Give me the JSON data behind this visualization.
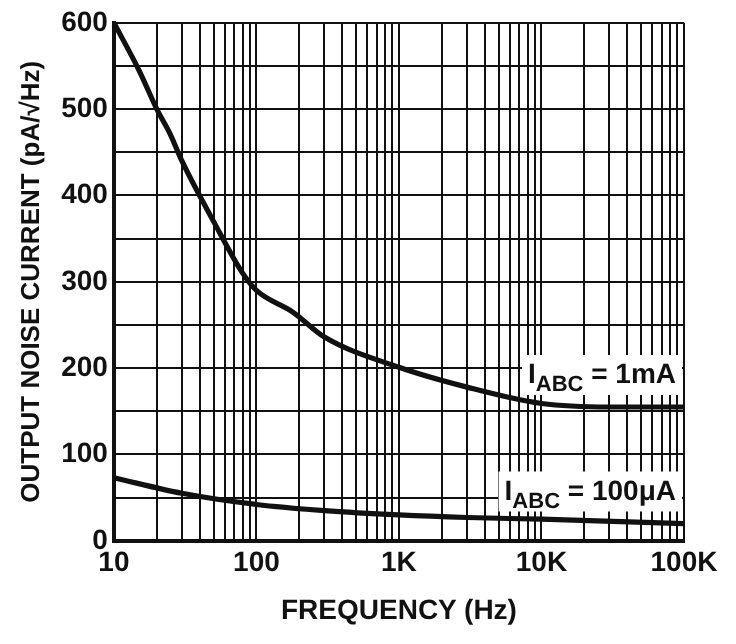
{
  "chart_data": {
    "type": "line",
    "xlabel": "FREQUENCY (Hz)",
    "ylabel": "OUTPUT NOISE CURRENT (pA/√Hz)",
    "log": "x",
    "xlim": [
      10,
      100000
    ],
    "ylim": [
      0,
      600
    ],
    "xticks": [
      10,
      {
        "value": 20,
        "label": null
      },
      {
        "value": 30,
        "label": null
      },
      {
        "value": 40,
        "label": null
      },
      {
        "value": 50,
        "label": null
      },
      {
        "value": 60,
        "label": null
      },
      {
        "value": 70,
        "label": null
      },
      {
        "value": 80,
        "label": null
      },
      {
        "value": 90,
        "label": null
      },
      100,
      {
        "value": 200,
        "label": null
      },
      {
        "value": 300,
        "label": null
      },
      {
        "value": 400,
        "label": null
      },
      {
        "value": 500,
        "label": null
      },
      {
        "value": 600,
        "label": null
      },
      {
        "value": 700,
        "label": null
      },
      {
        "value": 800,
        "label": null
      },
      {
        "value": 900,
        "label": null
      },
      {
        "value": 1000,
        "label": "1K"
      },
      {
        "value": 2000,
        "label": null
      },
      {
        "value": 3000,
        "label": null
      },
      {
        "value": 4000,
        "label": null
      },
      {
        "value": 5000,
        "label": null
      },
      {
        "value": 6000,
        "label": null
      },
      {
        "value": 7000,
        "label": null
      },
      {
        "value": 8000,
        "label": null
      },
      {
        "value": 9000,
        "label": null
      },
      {
        "value": 10000,
        "label": "10K"
      },
      {
        "value": 20000,
        "label": null
      },
      {
        "value": 30000,
        "label": null
      },
      {
        "value": 40000,
        "label": null
      },
      {
        "value": 50000,
        "label": null
      },
      {
        "value": 60000,
        "label": null
      },
      {
        "value": 70000,
        "label": null
      },
      {
        "value": 80000,
        "label": null
      },
      {
        "value": 90000,
        "label": null
      },
      {
        "value": 100000,
        "label": "100K"
      }
    ],
    "yticks": [
      0,
      {
        "value": 50,
        "label": null
      },
      100,
      {
        "value": 150,
        "label": null
      },
      200,
      {
        "value": 250,
        "label": null
      },
      300,
      {
        "value": 350,
        "label": null
      },
      400,
      {
        "value": 450,
        "label": null
      },
      500,
      {
        "value": 550,
        "label": null
      },
      600
    ],
    "grid": true,
    "legend": false,
    "marker": "none",
    "line_style": "solid",
    "series": [
      {
        "name": "I$_{ABC}$ = 1mA",
        "color": "#111111",
        "x": [
          10,
          15,
          20,
          25,
          30,
          50,
          80,
          100,
          180,
          300,
          1000,
          3000,
          10000,
          30000,
          100000
        ],
        "values": [
          600,
          545,
          500,
          470,
          440,
          370,
          310,
          290,
          265,
          236,
          201,
          178,
          159,
          155,
          155
        ]
      },
      {
        "name": "I$_{ABC}$ = 100μA",
        "color": "#111111",
        "x": [
          10,
          30,
          100,
          300,
          1000,
          3000,
          10000,
          100000
        ],
        "values": [
          73,
          55,
          42,
          35,
          30,
          27,
          25,
          20
        ]
      }
    ]
  }
}
